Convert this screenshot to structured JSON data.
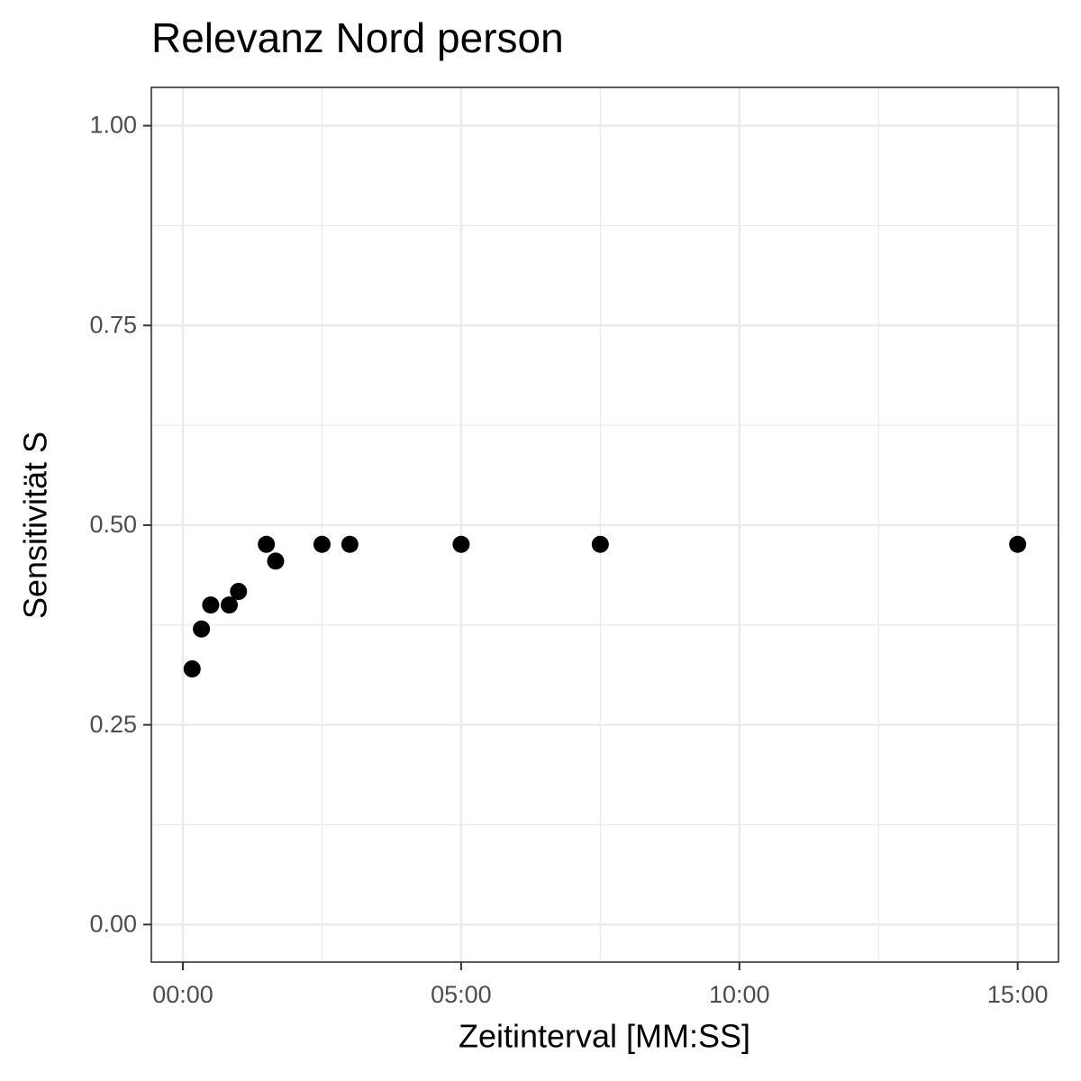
{
  "chart_data": {
    "type": "scatter",
    "title": "Relevanz Nord person",
    "x_label": "Zeitinterval [MM:SS]",
    "y_label": "Sensitivität S",
    "x": [
      10,
      20,
      30,
      50,
      60,
      90,
      100,
      150,
      180,
      300,
      450,
      900
    ],
    "values": [
      0.32,
      0.37,
      0.4,
      0.4,
      0.417,
      0.476,
      0.455,
      0.476,
      0.476,
      0.476,
      0.476,
      0.476
    ],
    "color": "#000000",
    "xlim": [
      -34,
      944
    ],
    "xticks": [
      {
        "value": 0,
        "label": "00:00"
      },
      {
        "value": 300,
        "label": "05:00"
      },
      {
        "value": 600,
        "label": "10:00"
      },
      {
        "value": 900,
        "label": "15:00"
      }
    ],
    "ylim": [
      -0.047,
      1.048
    ],
    "yticks": [
      {
        "value": 0,
        "label": "0.00"
      },
      {
        "value": 0.25,
        "label": "0.25"
      },
      {
        "value": 0.5,
        "label": "0.50"
      },
      {
        "value": 0.75,
        "label": "0.75"
      },
      {
        "value": 1,
        "label": "1.00"
      }
    ],
    "grid": true
  }
}
